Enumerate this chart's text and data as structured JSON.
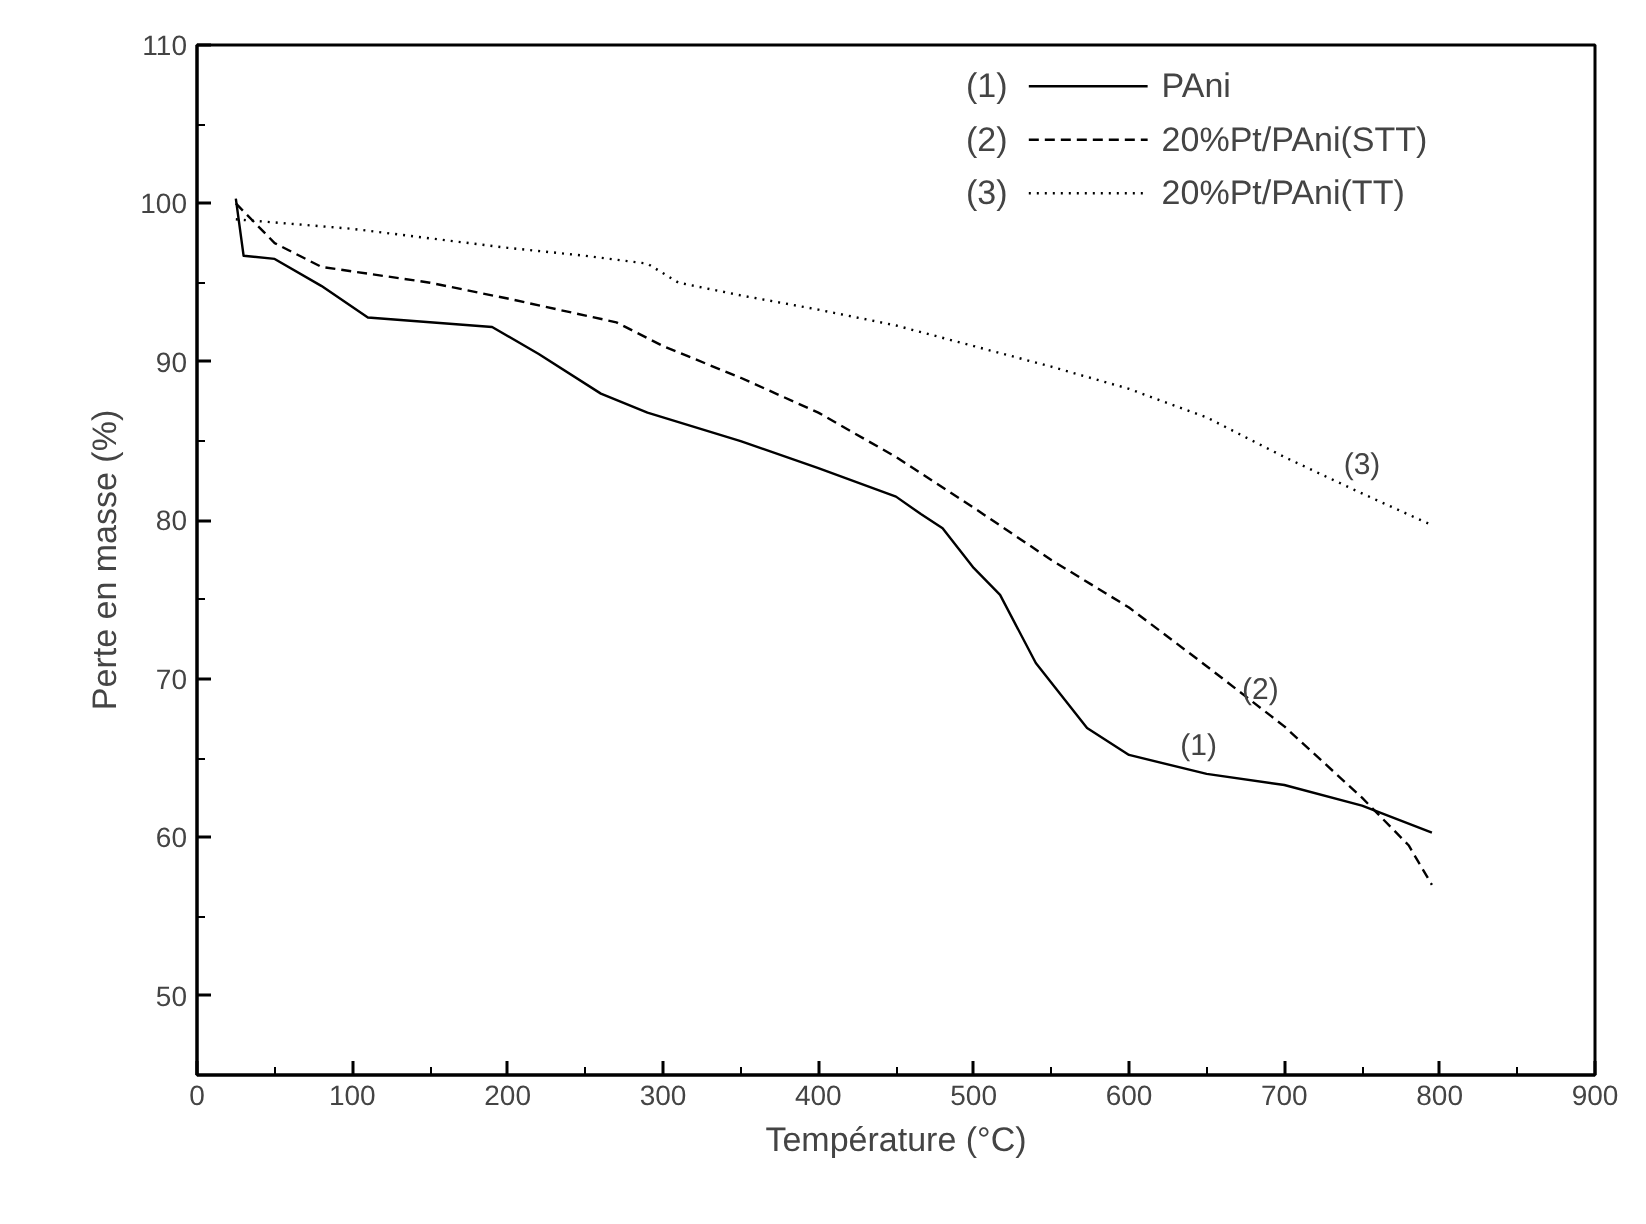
{
  "chart_data": {
    "type": "line",
    "xlabel": "Température (°C)",
    "ylabel": "Perte en masse (%)",
    "xlim": [
      0,
      900
    ],
    "ylim": [
      45,
      110
    ],
    "xticks": [
      0,
      100,
      200,
      300,
      400,
      500,
      600,
      700,
      800,
      900
    ],
    "yticks": [
      50,
      60,
      70,
      80,
      90,
      100,
      110
    ],
    "grid": false,
    "legend": "top right",
    "marker": "none",
    "series": [
      {
        "name": "PAni",
        "color": "#000000",
        "line_style": "solid",
        "x": [
          25,
          30,
          50,
          80,
          110,
          150,
          190,
          220,
          260,
          290,
          350,
          400,
          450,
          466,
          480,
          500,
          517,
          540,
          573,
          600,
          650,
          700,
          750,
          795
        ],
        "values": [
          100.3,
          96.7,
          96.5,
          94.8,
          92.8,
          92.5,
          92.2,
          90.5,
          88,
          86.8,
          85,
          83.3,
          81.5,
          80.4,
          79.5,
          77,
          75.3,
          71,
          66.9,
          65.2,
          64,
          63.3,
          62,
          60.3
        ]
      },
      {
        "name": "20%Pt/PAni(STT)",
        "color": "#000000",
        "line_style": "dashed",
        "x": [
          25,
          50,
          80,
          150,
          200,
          270,
          300,
          350,
          400,
          450,
          500,
          550,
          600,
          650,
          700,
          750,
          780,
          795
        ],
        "values": [
          100,
          97.5,
          96,
          95,
          94,
          92.5,
          91,
          89,
          86.8,
          84,
          80.8,
          77.5,
          74.5,
          70.8,
          67,
          62.5,
          59.5,
          57
        ]
      },
      {
        "name": "20%Pt/PAni(TT)",
        "color": "#000000",
        "line_style": "dotted",
        "x": [
          25,
          100,
          150,
          200,
          250,
          290,
          310,
          350,
          400,
          450,
          500,
          550,
          600,
          650,
          700,
          750,
          795
        ],
        "values": [
          99,
          98.4,
          97.8,
          97.2,
          96.7,
          96.2,
          95,
          94.2,
          93.3,
          92.3,
          91,
          89.7,
          88.3,
          86.5,
          84,
          81.7,
          79.7
        ]
      }
    ],
    "annotations": [
      "(1)",
      "(2)",
      "(3)"
    ]
  }
}
